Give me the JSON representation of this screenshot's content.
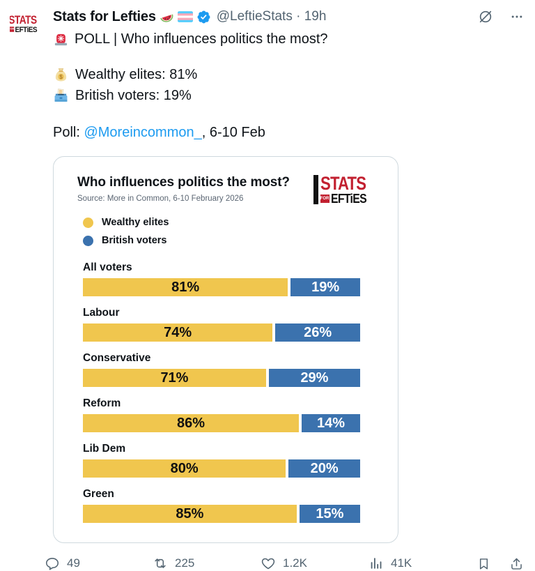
{
  "header": {
    "display_name": "Stats for Lefties",
    "handle": "@LeftieStats",
    "separator": "·",
    "timestamp": "19h"
  },
  "tweet": {
    "line1": "POLL | Who influences politics the most?",
    "poll_lines": [
      {
        "text": "Wealthy elites: 81%"
      },
      {
        "text": "British voters: 19%"
      }
    ],
    "attribution": {
      "prefix": "Poll: ",
      "mention": "@Moreincommon_",
      "suffix": ", 6-10 Feb"
    }
  },
  "brand": {
    "stats": "STATS",
    "for": "FOR",
    "lefties": "EFTiES"
  },
  "card": {
    "title": "Who influences politics the most?",
    "source": "Source: More in Common, 6-10 February 2026"
  },
  "chart_data": {
    "type": "bar",
    "orientation": "horizontal",
    "stacked": true,
    "title": "Who influences politics the most?",
    "source": "Source: More in Common, 6-10 February 2026",
    "categories": [
      "All voters",
      "Labour",
      "Conservative",
      "Reform",
      "Lib Dem",
      "Green"
    ],
    "series": [
      {
        "name": "Wealthy elites",
        "color": "#F0C64E",
        "values": [
          81,
          74,
          71,
          86,
          80,
          85
        ]
      },
      {
        "name": "British voters",
        "color": "#3B72AE",
        "values": [
          19,
          26,
          29,
          14,
          20,
          15
        ]
      }
    ],
    "value_suffix": "%",
    "xlim": [
      0,
      100
    ],
    "legend_position": "top-left",
    "grid": false
  },
  "actions": {
    "reply_count": "49",
    "repost_count": "225",
    "like_count": "1.2K",
    "view_count": "41K"
  },
  "colors": {
    "yellow": "#F0C64E",
    "blue": "#3B72AE",
    "logo_red": "#C22030",
    "link_blue": "#1D9BF0",
    "text_primary": "#0F1419",
    "text_secondary": "#536471",
    "card_border": "#CFD9DE"
  },
  "icons": {
    "siren-light-icon": "red emergency rotating light emoji",
    "money-bag-icon": "money bag emoji",
    "ballot-box-icon": "ballot box with ballot emoji",
    "watermelon-icon": "watermelon slice emoji",
    "trans-flag-icon": "transgender flag emoji",
    "verified-badge-icon": "blue verified checkmark",
    "grok-icon": "grok slashed-circle button",
    "more-icon": "three dots overflow menu",
    "reply-icon": "speech bubble",
    "repost-icon": "retweet arrows",
    "like-icon": "heart outline",
    "views-icon": "analytics bar chart",
    "bookmark-icon": "bookmark outline",
    "share-icon": "share up-arrow from tray"
  }
}
